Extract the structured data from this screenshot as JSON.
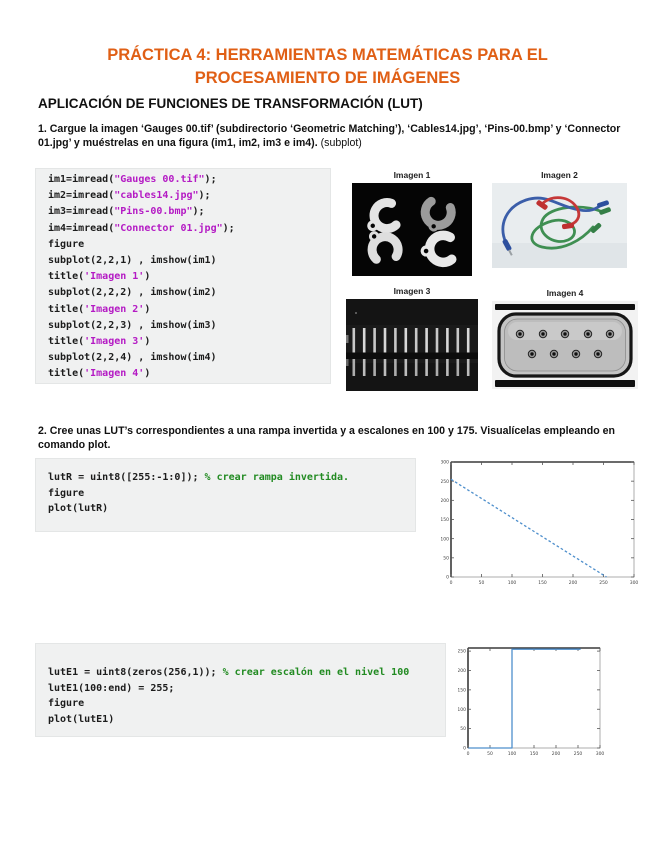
{
  "page": {
    "title_line1": "PRÁCTICA 4: HERRAMIENTAS MATEMÁTICAS PARA EL",
    "title_line2": "PROCESAMIENTO DE IMÁGENES",
    "section_heading": "APLICACIÓN DE FUNCIONES DE TRANSFORMACIÓN (LUT)"
  },
  "task1": {
    "text": "1. Cargue la imagen ‘Gauges 00.tif’ (subdirectorio ‘Geometric Matching’), ‘Cables14.jpg’, ‘Pins-00.bmp’ y ‘Connector 01.jpg’ y muéstrelas en una figura (im1, im2, im3 e im4).",
    "suffix": " (subplot)"
  },
  "task2": {
    "text": "2. Cree unas LUT’s correspondientes a una rampa invertida y a escalones en 100 y 175. Visualícelas empleando en comando plot."
  },
  "figure1": {
    "titles": [
      "Imagen 1",
      "Imagen 2",
      "Imagen 3",
      "Imagen 4"
    ]
  },
  "code_blocks": [
    {
      "id": "code1",
      "lines": [
        [
          [
            "c",
            "im1=imread("
          ],
          [
            "s",
            "\"Gauges 00.tif\""
          ],
          [
            "c",
            ");"
          ]
        ],
        [
          [
            "c",
            "im2=imread("
          ],
          [
            "s",
            "\"cables14.jpg\""
          ],
          [
            "c",
            ");"
          ]
        ],
        [
          [
            "c",
            "im3=imread("
          ],
          [
            "s",
            "\"Pins-00.bmp\""
          ],
          [
            "c",
            ");"
          ]
        ],
        [
          [
            "c",
            "im4=imread("
          ],
          [
            "s",
            "\"Connector 01.jpg\""
          ],
          [
            "c",
            ");"
          ]
        ],
        [
          [
            "c",
            "figure"
          ]
        ],
        [
          [
            "c",
            "subplot(2,2,1) , imshow(im1)"
          ]
        ],
        [
          [
            "c",
            "title("
          ],
          [
            "s",
            "'Imagen 1'"
          ],
          [
            "c",
            ")"
          ]
        ],
        [
          [
            "c",
            "subplot(2,2,2) , imshow(im2)"
          ]
        ],
        [
          [
            "c",
            "title("
          ],
          [
            "s",
            "'Imagen 2'"
          ],
          [
            "c",
            ")"
          ]
        ],
        [
          [
            "c",
            "subplot(2,2,3) , imshow(im3)"
          ]
        ],
        [
          [
            "c",
            "title("
          ],
          [
            "s",
            "'Imagen 3'"
          ],
          [
            "c",
            ")"
          ]
        ],
        [
          [
            "c",
            "subplot(2,2,4) , imshow(im4)"
          ]
        ],
        [
          [
            "c",
            "title("
          ],
          [
            "s",
            "'Imagen 4'"
          ],
          [
            "c",
            ")"
          ]
        ]
      ]
    },
    {
      "id": "code2",
      "lines": [
        [
          [
            "c",
            "lutR = uint8([255:-1:0]); "
          ],
          [
            "m",
            "% crear rampa invertida."
          ]
        ],
        [
          [
            "c",
            "figure"
          ]
        ],
        [
          [
            "c",
            "plot(lutR)"
          ]
        ]
      ]
    },
    {
      "id": "code3",
      "lines": [
        [
          [
            "c",
            "lutE1 = uint8(zeros(256,1)); "
          ],
          [
            "m",
            "% crear escalón en el nivel 100"
          ]
        ],
        [
          [
            "c",
            "lutE1(100:end) = 255;"
          ]
        ],
        [
          [
            "c",
            "figure"
          ]
        ],
        [
          [
            "c",
            "plot(lutE1)"
          ]
        ]
      ]
    }
  ],
  "colors": {
    "title_orange": "#e05f15",
    "code_string_purple": "#b41ac4",
    "code_comment_green": "#228b22",
    "plot_line_blue": "#4e8fcc",
    "code_background": "#f0f1f1"
  },
  "chart_data": [
    {
      "type": "line",
      "title": "",
      "xlabel": "",
      "ylabel": "",
      "description": "Inverted ramp LUT: value 255 at index 0 decreasing linearly to 0 at index 255",
      "series": [
        {
          "name": "lutR",
          "points": [
            [
              0,
              255
            ],
            [
              255,
              0
            ]
          ],
          "style": "dotted"
        }
      ],
      "xlim": [
        0,
        300
      ],
      "ylim": [
        0,
        300
      ],
      "xticks": [
        0,
        50,
        100,
        150,
        200,
        250,
        300
      ],
      "yticks": [
        0,
        50,
        100,
        150,
        200,
        250,
        300
      ],
      "grid": false,
      "legend": "none",
      "line_color": "#4e8fcc"
    },
    {
      "type": "line",
      "title": "",
      "xlabel": "",
      "ylabel": "",
      "description": "Step LUT: 0 below index 100, 255 from index 100 to 256",
      "series": [
        {
          "name": "lutE1",
          "points": [
            [
              1,
              0
            ],
            [
              100,
              0
            ],
            [
              100,
              255
            ],
            [
              256,
              255
            ]
          ],
          "style": "solid"
        }
      ],
      "xlim": [
        0,
        300
      ],
      "ylim": [
        0,
        258
      ],
      "xticks": [
        0,
        50,
        100,
        150,
        200,
        250,
        300
      ],
      "yticks": [
        0,
        50,
        100,
        150,
        200,
        250
      ],
      "grid": false,
      "legend": "none",
      "line_color": "#4e8fcc"
    }
  ]
}
